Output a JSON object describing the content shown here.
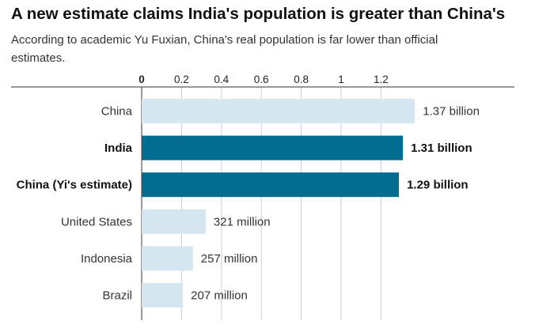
{
  "title": "A new estimate claims India's population is greater than China's",
  "subtitle": "According to academic Yu Fuxian, China's real population is far lower than official estimates.",
  "chart_data": {
    "type": "bar",
    "orientation": "horizontal",
    "categories": [
      "China",
      "India",
      "China (Yi's estimate)",
      "United States",
      "Indonesia",
      "Brazil"
    ],
    "values": [
      1.37,
      1.31,
      1.29,
      0.321,
      0.257,
      0.207
    ],
    "value_labels": [
      "1.37 billion",
      "1.31 billion",
      "1.29 billion",
      "321 million",
      "257 million",
      "207 million"
    ],
    "highlighted": [
      false,
      true,
      true,
      false,
      false,
      false
    ],
    "x_ticks": [
      0,
      0.2,
      0.4,
      0.6,
      0.8,
      1,
      1.2
    ],
    "x_tick_labels": [
      "0",
      "0.2",
      "0.4",
      "0.6",
      "0.8",
      "1",
      "1.2"
    ],
    "xlim": [
      0,
      1.85
    ],
    "xlabel": "",
    "ylabel": "",
    "grid": true,
    "colors": {
      "default": "#d5e6f0",
      "highlight": "#016c90",
      "grid": "#cccccc",
      "axis": "#333333"
    }
  }
}
